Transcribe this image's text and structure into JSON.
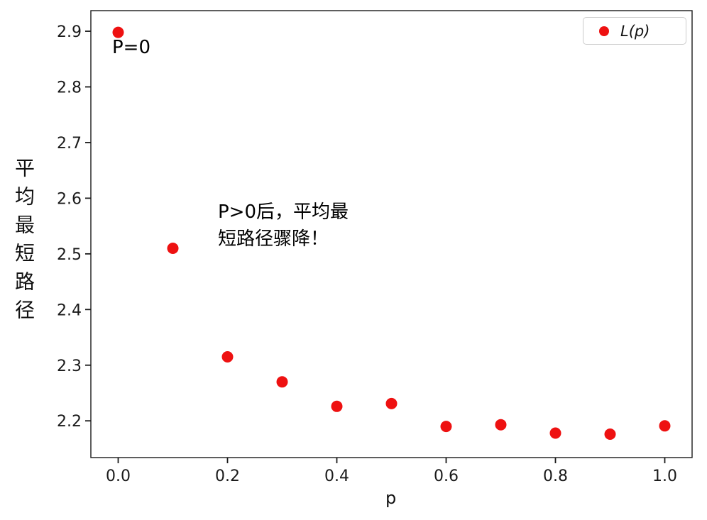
{
  "chart_data": {
    "type": "scatter",
    "title": "",
    "xlabel": "p",
    "ylabel": "平均最短路径",
    "xlim": [
      -0.05,
      1.05
    ],
    "ylim": [
      2.134,
      2.937
    ],
    "xticks": [
      0.0,
      0.2,
      0.4,
      0.6,
      0.8,
      1.0
    ],
    "xtick_labels": [
      "0.0",
      "0.2",
      "0.4",
      "0.6",
      "0.8",
      "1.0"
    ],
    "yticks": [
      2.2,
      2.3,
      2.4,
      2.5,
      2.6,
      2.7,
      2.8,
      2.9
    ],
    "ytick_labels": [
      "2.2",
      "2.3",
      "2.4",
      "2.5",
      "2.6",
      "2.7",
      "2.8",
      "2.9"
    ],
    "grid": false,
    "dot_color": "#ee1111",
    "marker_size_px": 8,
    "series": [
      {
        "name": "L(p)",
        "x": [
          0.0,
          0.1,
          0.2,
          0.3,
          0.4,
          0.5,
          0.6,
          0.7,
          0.8,
          0.9,
          1.0
        ],
        "y": [
          2.898,
          2.51,
          2.315,
          2.27,
          2.226,
          2.231,
          2.19,
          2.193,
          2.178,
          2.176,
          2.191
        ]
      }
    ],
    "legend": {
      "label": "L(p)",
      "position": "upper right"
    },
    "annotations": [
      {
        "text": "P=0",
        "x": 0.0,
        "y": 2.85
      },
      {
        "lines": [
          "P>0后，平均最",
          "短路径骤降！"
        ],
        "x": 0.18,
        "y": 2.56
      }
    ]
  }
}
